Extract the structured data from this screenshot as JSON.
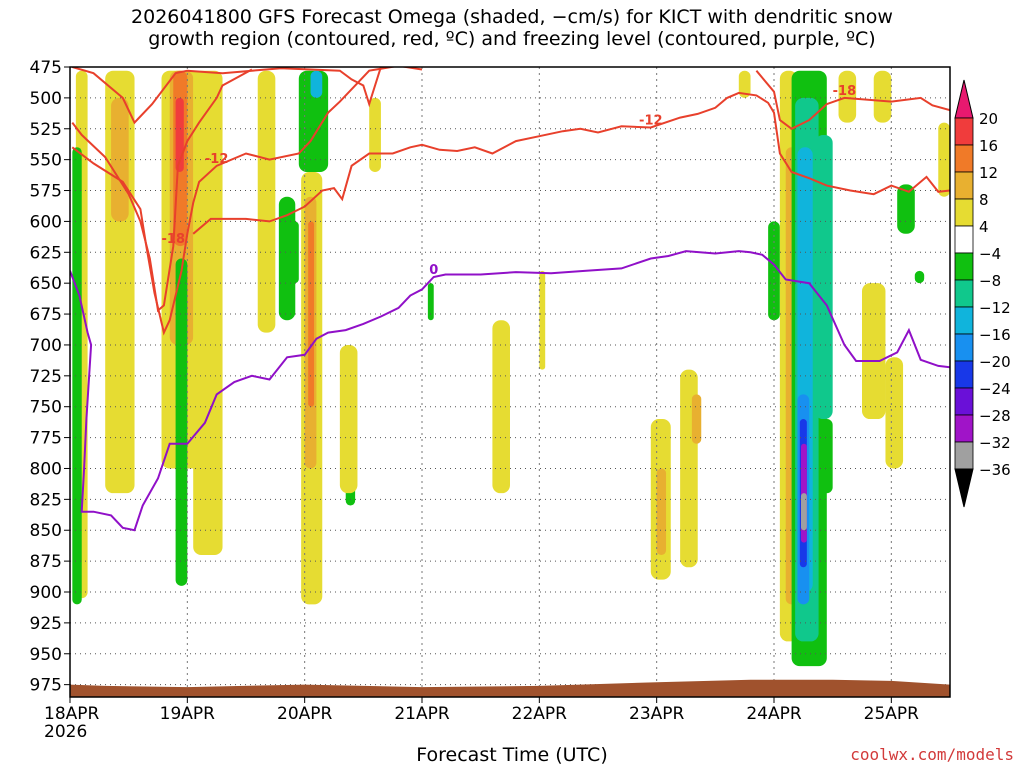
{
  "title_line1": "2026041800 GFS Forecast Omega (shaded, −cm/s) for KICT with dendritic snow",
  "title_line2": "growth region (contoured, red, ºC) and freezing level (contoured, purple, ºC)",
  "xlabel": "Forecast Time (UTC)",
  "credit": "coolwx.com/models",
  "chart_data": {
    "type": "heatmap",
    "x_ticks": [
      "18APR",
      "19APR",
      "20APR",
      "21APR",
      "22APR",
      "23APR",
      "24APR",
      "25APR"
    ],
    "x_year": "2026",
    "x_range_days": [
      0,
      7.5
    ],
    "y_ticks": [
      475,
      500,
      525,
      550,
      575,
      600,
      625,
      650,
      675,
      700,
      725,
      750,
      775,
      800,
      825,
      850,
      875,
      900,
      925,
      950,
      975
    ],
    "y_range_hpa": [
      475,
      985
    ],
    "colorbar": {
      "levels": [
        20,
        16,
        12,
        8,
        4,
        -4,
        -8,
        -12,
        -16,
        -20,
        -24,
        -28,
        -32,
        -36
      ],
      "colors": [
        "#e8196f",
        "#f03c3c",
        "#f07a28",
        "#e8b030",
        "#e6dc32",
        "#ffffff",
        "#10c010",
        "#10c88c",
        "#10b4dc",
        "#1890f0",
        "#1838e8",
        "#6a10d8",
        "#a014c8",
        "#a0a0a0",
        "#000000"
      ]
    },
    "contours_red": [
      {
        "label": "-18",
        "points": [
          [
            0.02,
            475
          ],
          [
            0.2,
            480
          ],
          [
            0.45,
            500
          ],
          [
            0.55,
            520
          ],
          [
            0.7,
            505
          ],
          [
            0.9,
            480
          ],
          [
            1.0,
            478
          ],
          [
            1.3,
            480
          ],
          [
            1.55,
            478
          ],
          [
            1.8,
            476
          ],
          [
            2.3,
            478
          ],
          [
            2.4,
            485
          ],
          [
            2.5,
            490
          ],
          [
            2.55,
            505
          ],
          [
            2.65,
            475
          ]
        ]
      },
      {
        "label": "-18",
        "points": [
          [
            0.02,
            520
          ],
          [
            0.1,
            530
          ],
          [
            0.3,
            548
          ],
          [
            0.5,
            578
          ],
          [
            0.6,
            600
          ],
          [
            0.68,
            630
          ],
          [
            0.75,
            672
          ],
          [
            0.8,
            668
          ],
          [
            0.88,
            620
          ],
          [
            0.92,
            555
          ],
          [
            1.0,
            535
          ],
          [
            1.1,
            520
          ],
          [
            1.25,
            500
          ],
          [
            1.3,
            490
          ],
          [
            1.55,
            477
          ]
        ]
      },
      {
        "label": "-12",
        "points": [
          [
            0.02,
            540
          ],
          [
            0.2,
            553
          ],
          [
            0.45,
            568
          ],
          [
            0.6,
            590
          ],
          [
            0.65,
            620
          ],
          [
            0.72,
            658
          ],
          [
            0.8,
            690
          ],
          [
            0.85,
            680
          ],
          [
            0.95,
            640
          ],
          [
            1.0,
            610
          ],
          [
            1.05,
            585
          ],
          [
            1.1,
            568
          ],
          [
            1.25,
            555
          ],
          [
            1.5,
            545
          ],
          [
            1.7,
            550
          ],
          [
            1.95,
            545
          ],
          [
            2.05,
            535
          ],
          [
            2.2,
            512
          ],
          [
            2.3,
            503
          ],
          [
            2.45,
            488
          ],
          [
            2.55,
            478
          ],
          [
            2.8,
            474
          ],
          [
            3.0,
            477
          ]
        ]
      },
      {
        "label": "-12",
        "points": [
          [
            1.05,
            610
          ],
          [
            1.2,
            598
          ],
          [
            1.5,
            598
          ],
          [
            1.7,
            600
          ],
          [
            1.85,
            595
          ],
          [
            2.0,
            588
          ],
          [
            2.15,
            575
          ],
          [
            2.25,
            573
          ],
          [
            2.32,
            582
          ],
          [
            2.4,
            555
          ],
          [
            2.55,
            545
          ],
          [
            2.75,
            545
          ],
          [
            2.9,
            540
          ],
          [
            3.0,
            538
          ],
          [
            3.15,
            542
          ],
          [
            3.3,
            543
          ],
          [
            3.45,
            540
          ],
          [
            3.6,
            545
          ],
          [
            3.8,
            535
          ],
          [
            4.0,
            531
          ],
          [
            4.2,
            527
          ],
          [
            4.35,
            525
          ],
          [
            4.5,
            528
          ],
          [
            4.7,
            523
          ],
          [
            4.95,
            524
          ],
          [
            5.2,
            516
          ],
          [
            5.35,
            513
          ],
          [
            5.5,
            508
          ],
          [
            5.6,
            500
          ],
          [
            5.7,
            496
          ],
          [
            5.85,
            498
          ],
          [
            5.95,
            504
          ],
          [
            6.0,
            512
          ],
          [
            6.05,
            545
          ],
          [
            6.15,
            560
          ],
          [
            6.3,
            565
          ],
          [
            6.45,
            571
          ],
          [
            6.65,
            575
          ],
          [
            6.85,
            578
          ],
          [
            7.0,
            571
          ],
          [
            7.15,
            576
          ],
          [
            7.3,
            564
          ],
          [
            7.4,
            576
          ],
          [
            7.5,
            575
          ]
        ]
      },
      {
        "label": "-18",
        "points": [
          [
            5.85,
            478
          ],
          [
            6.0,
            495
          ],
          [
            6.05,
            518
          ],
          [
            6.15,
            525
          ],
          [
            6.3,
            518
          ],
          [
            6.45,
            505
          ],
          [
            6.6,
            500
          ],
          [
            7.0,
            503
          ],
          [
            7.25,
            500
          ],
          [
            7.35,
            506
          ],
          [
            7.5,
            510
          ]
        ]
      }
    ],
    "contours_purple": [
      {
        "label": "0",
        "points": [
          [
            0.0,
            640
          ],
          [
            0.08,
            660
          ],
          [
            0.15,
            690
          ],
          [
            0.18,
            700
          ],
          [
            0.14,
            760
          ],
          [
            0.12,
            800
          ],
          [
            0.1,
            835
          ],
          [
            0.2,
            835
          ],
          [
            0.35,
            838
          ],
          [
            0.45,
            848
          ],
          [
            0.55,
            850
          ],
          [
            0.62,
            830
          ],
          [
            0.75,
            808
          ],
          [
            0.85,
            780
          ],
          [
            1.0,
            780
          ],
          [
            1.15,
            763
          ],
          [
            1.25,
            740
          ],
          [
            1.4,
            730
          ],
          [
            1.55,
            725
          ],
          [
            1.7,
            728
          ],
          [
            1.85,
            710
          ],
          [
            2.0,
            708
          ],
          [
            2.1,
            695
          ],
          [
            2.2,
            690
          ],
          [
            2.35,
            688
          ],
          [
            2.5,
            683
          ],
          [
            2.65,
            677
          ],
          [
            2.8,
            670
          ],
          [
            2.9,
            660
          ],
          [
            3.0,
            655
          ],
          [
            3.1,
            645
          ],
          [
            3.2,
            643
          ],
          [
            3.5,
            643
          ],
          [
            3.8,
            641
          ],
          [
            4.1,
            642
          ],
          [
            4.4,
            640
          ],
          [
            4.7,
            638
          ],
          [
            4.95,
            630
          ],
          [
            5.1,
            628
          ],
          [
            5.25,
            624
          ],
          [
            5.5,
            626
          ],
          [
            5.7,
            624
          ],
          [
            5.8,
            625
          ],
          [
            5.9,
            627
          ],
          [
            6.0,
            635
          ],
          [
            6.1,
            647
          ],
          [
            6.3,
            650
          ],
          [
            6.45,
            668
          ],
          [
            6.6,
            700
          ],
          [
            6.7,
            713
          ],
          [
            6.9,
            713
          ],
          [
            7.05,
            706
          ],
          [
            7.15,
            688
          ],
          [
            7.25,
            712
          ],
          [
            7.4,
            717
          ],
          [
            7.5,
            718
          ]
        ]
      }
    ]
  }
}
